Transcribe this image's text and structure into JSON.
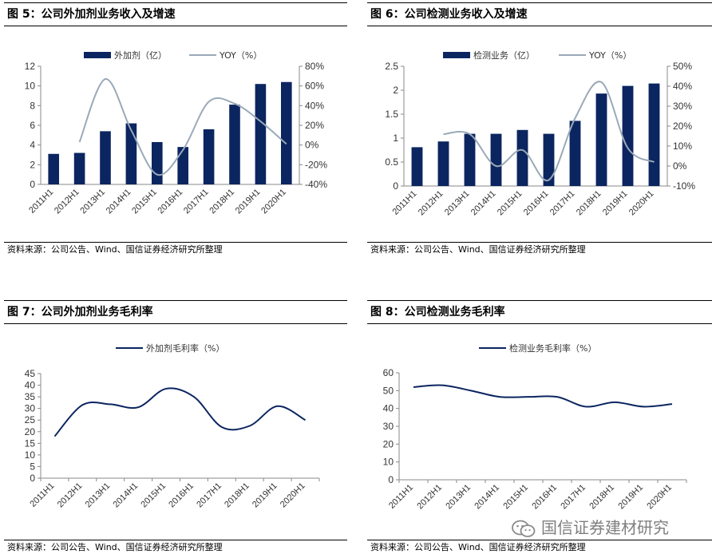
{
  "panels": [
    {
      "id": "p5",
      "title": "图 5：公司外加剂业务收入及增速",
      "source": "资料来源：公司公告、Wind、国信证券经济研究所整理",
      "chart_data": {
        "type": "bar+line",
        "categories": [
          "2011H1",
          "2012H1",
          "2013H1",
          "2014H1",
          "2015H1",
          "2016H1",
          "2017H1",
          "2018H1",
          "2019H1",
          "2020H1"
        ],
        "series": [
          {
            "name": "外加剂（亿）",
            "type": "bar",
            "axis": "left",
            "values": [
              3.1,
              3.2,
              5.4,
              6.2,
              4.3,
              3.8,
              5.6,
              8.1,
              10.2,
              10.4
            ]
          },
          {
            "name": "YOY（%）",
            "type": "line",
            "axis": "right",
            "values": [
              null,
              3,
              67,
              15,
              -30,
              -5,
              44,
              42,
              24,
              1
            ]
          }
        ],
        "ylim_left": [
          0,
          12
        ],
        "yticks_left": [
          "0",
          "2",
          "4",
          "6",
          "8",
          "10",
          "12"
        ],
        "ylim_right": [
          -40,
          80
        ],
        "yticks_right": [
          "-40%",
          "-20%",
          "0%",
          "20%",
          "40%",
          "60%",
          "80%"
        ],
        "legend": "top",
        "colors": {
          "bar": "#0b2560",
          "line": "#9aa9b8"
        }
      }
    },
    {
      "id": "p6",
      "title": "图 6：公司检测业务收入及增速",
      "source": "资料来源：公司公告、Wind、国信证券经济研究所整理",
      "chart_data": {
        "type": "bar+line",
        "categories": [
          "2011H1",
          "2012H1",
          "2013H1",
          "2014H1",
          "2015H1",
          "2016H1",
          "2017H1",
          "2018H1",
          "2019H1",
          "2020H1"
        ],
        "series": [
          {
            "name": "检测业务（亿）",
            "type": "bar",
            "axis": "left",
            "values": [
              0.81,
              0.93,
              1.09,
              1.09,
              1.17,
              1.09,
              1.36,
              1.93,
              2.09,
              2.14
            ]
          },
          {
            "name": "YOY（%）",
            "type": "line",
            "axis": "right",
            "values": [
              null,
              16,
              16,
              0,
              8,
              -7,
              24,
              42,
              9,
              2
            ]
          }
        ],
        "ylim_left": [
          0,
          2.5
        ],
        "yticks_left": [
          "0",
          "0.5",
          "1",
          "1.5",
          "2",
          "2.5"
        ],
        "ylim_right": [
          -10,
          50
        ],
        "yticks_right": [
          "-10%",
          "0%",
          "10%",
          "20%",
          "30%",
          "40%",
          "50%"
        ],
        "legend": "top",
        "colors": {
          "bar": "#0b2560",
          "line": "#9aa9b8"
        }
      }
    },
    {
      "id": "p7",
      "title": "图 7：公司外加剂业务毛利率",
      "source": "资料来源：公司公告、Wind、国信证券经济研究所整理",
      "chart_data": {
        "type": "line",
        "categories": [
          "2011H1",
          "2012H1",
          "2013H1",
          "2014H1",
          "2015H1",
          "2016H1",
          "2017H1",
          "2018H1",
          "2019H1",
          "2020H1"
        ],
        "series": [
          {
            "name": "外加剂毛利率（%）",
            "values": [
              18,
              31.5,
              31.8,
              30.5,
              38.5,
              35,
              22,
              22.5,
              31,
              25
            ]
          }
        ],
        "ylim": [
          0,
          45
        ],
        "yticks": [
          "0",
          "5",
          "10",
          "15",
          "20",
          "25",
          "30",
          "35",
          "40",
          "45"
        ],
        "legend": "top",
        "colors": {
          "line": "#0b2560"
        }
      }
    },
    {
      "id": "p8",
      "title": "图 8：公司检测业务毛利率",
      "source": "资料来源：公司公告、Wind、国信证券经济研究所整理",
      "chart_data": {
        "type": "line",
        "categories": [
          "2011H1",
          "2012H1",
          "2013H1",
          "2014H1",
          "2015H1",
          "2016H1",
          "2017H1",
          "2018H1",
          "2019H1",
          "2020H1"
        ],
        "series": [
          {
            "name": "检测业务毛利率（%）",
            "values": [
              52,
              53,
              50,
              46.5,
              46.5,
              46.5,
              41,
              43.5,
              41,
              42.5
            ]
          }
        ],
        "ylim": [
          0,
          60
        ],
        "yticks": [
          "0",
          "10",
          "20",
          "30",
          "40",
          "50",
          "60"
        ],
        "legend": "top",
        "colors": {
          "line": "#0b2560"
        }
      }
    }
  ],
  "watermark": {
    "text": "国信证券建材研究",
    "icon": "wechat-icon"
  }
}
